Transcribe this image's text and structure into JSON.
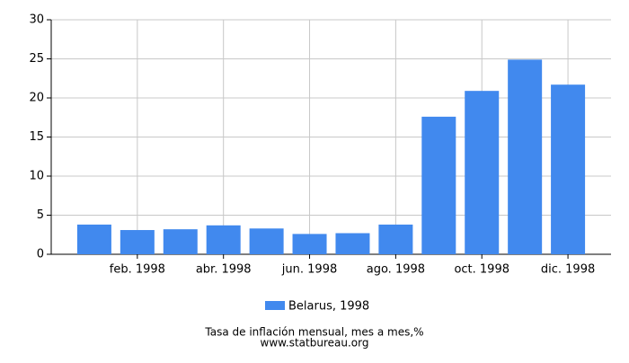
{
  "chart_data": {
    "type": "bar",
    "title": "Tasa de inflación mensual, mes a mes,%",
    "source": "www.statbureau.org",
    "categories": [
      null,
      "feb. 1998",
      null,
      "abr. 1998",
      null,
      "jun. 1998",
      null,
      "ago. 1998",
      null,
      "oct. 1998",
      null,
      "dic. 1998"
    ],
    "series": [
      {
        "name": "Belarus, 1998",
        "color": "#4189ee",
        "values": [
          3.8,
          3.1,
          3.2,
          3.7,
          3.3,
          2.6,
          2.7,
          3.8,
          17.6,
          20.9,
          24.9,
          21.7
        ]
      }
    ],
    "ylim": [
      0,
      30
    ],
    "yticks": [
      0,
      5,
      10,
      15,
      20,
      25,
      30
    ],
    "grid": true,
    "legend": "bottom"
  }
}
